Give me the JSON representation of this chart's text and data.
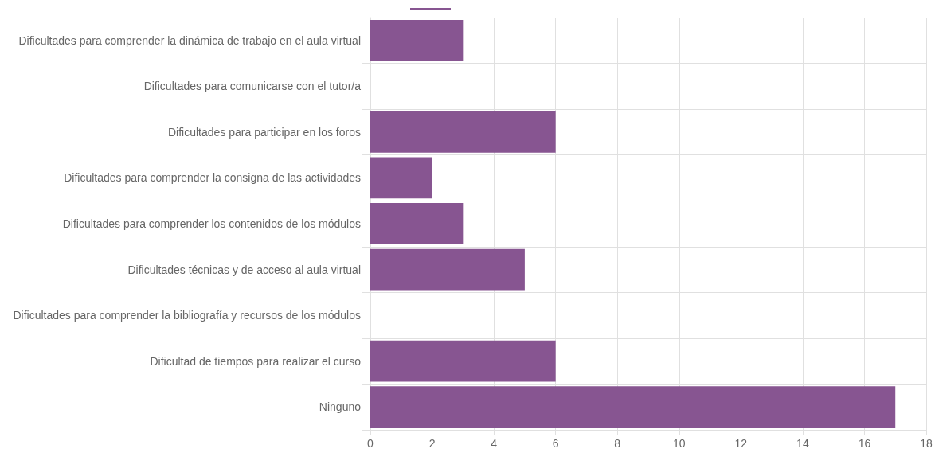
{
  "chart_data": {
    "type": "bar",
    "orientation": "horizontal",
    "categories": [
      "Dificultades para comprender la dinámica de trabajo en el aula virtual",
      "Dificultades para comunicarse con el tutor/a",
      "Dificultades para participar en los foros",
      "Dificultades para comprender la consigna de las actividades",
      "Dificultades para comprender los contenidos de los módulos",
      "Dificultades técnicas y de acceso al aula virtual",
      "Dificultades para comprender la bibliografía y recursos de los módulos",
      "Dificultad de tiempos para realizar el curso",
      "Ninguno"
    ],
    "values": [
      3,
      0,
      6,
      2,
      3,
      5,
      0,
      6,
      17
    ],
    "color": "#875591",
    "xlim": [
      0,
      18
    ],
    "xticks": [
      0,
      2,
      4,
      6,
      8,
      10,
      12,
      14,
      16,
      18
    ],
    "grid": true
  }
}
